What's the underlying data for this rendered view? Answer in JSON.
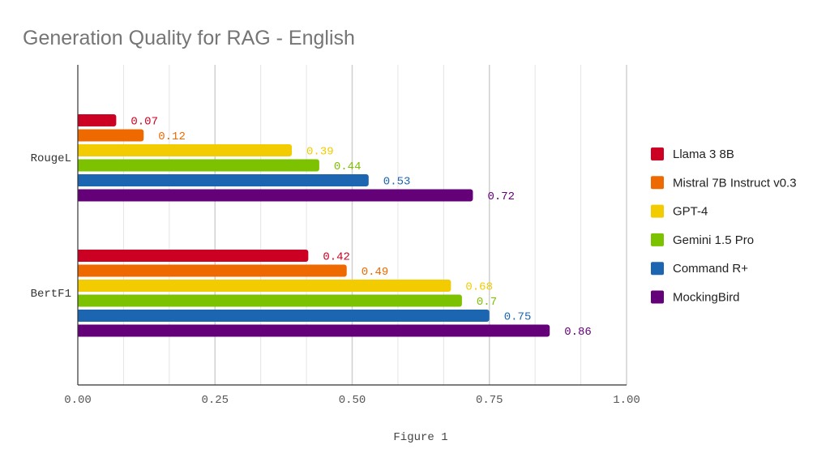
{
  "chart_data": {
    "type": "bar",
    "orientation": "horizontal",
    "title": "Generation Quality for RAG - English",
    "xlabel": "Figure 1",
    "ylabel": "",
    "categories": [
      "RougeL",
      "BertF1"
    ],
    "xlim": [
      0,
      1
    ],
    "x_ticks": [
      "0.00",
      "0.25",
      "0.50",
      "0.75",
      "1.00"
    ],
    "grid": true,
    "legend_position": "right",
    "series": [
      {
        "name": "Llama 3 8B",
        "color": "#cc0022",
        "values": [
          0.07,
          0.42
        ],
        "labels": [
          "0.07",
          "0.42"
        ]
      },
      {
        "name": "Mistral 7B Instruct v0.3",
        "color": "#ee6a00",
        "values": [
          0.12,
          0.49
        ],
        "labels": [
          "0.12",
          "0.49"
        ]
      },
      {
        "name": "GPT-4",
        "color": "#f2cc00",
        "values": [
          0.39,
          0.68
        ],
        "labels": [
          "0.39",
          "0.68"
        ]
      },
      {
        "name": "Gemini 1.5 Pro",
        "color": "#7dc200",
        "values": [
          0.44,
          0.7
        ],
        "labels": [
          "0.44",
          "0.7"
        ]
      },
      {
        "name": "Command R+",
        "color": "#1c65b0",
        "values": [
          0.53,
          0.75
        ],
        "labels": [
          "0.53",
          "0.75"
        ]
      },
      {
        "name": "MockingBird",
        "color": "#640078",
        "values": [
          0.72,
          0.86
        ],
        "labels": [
          "0.72",
          "0.86"
        ]
      }
    ]
  }
}
